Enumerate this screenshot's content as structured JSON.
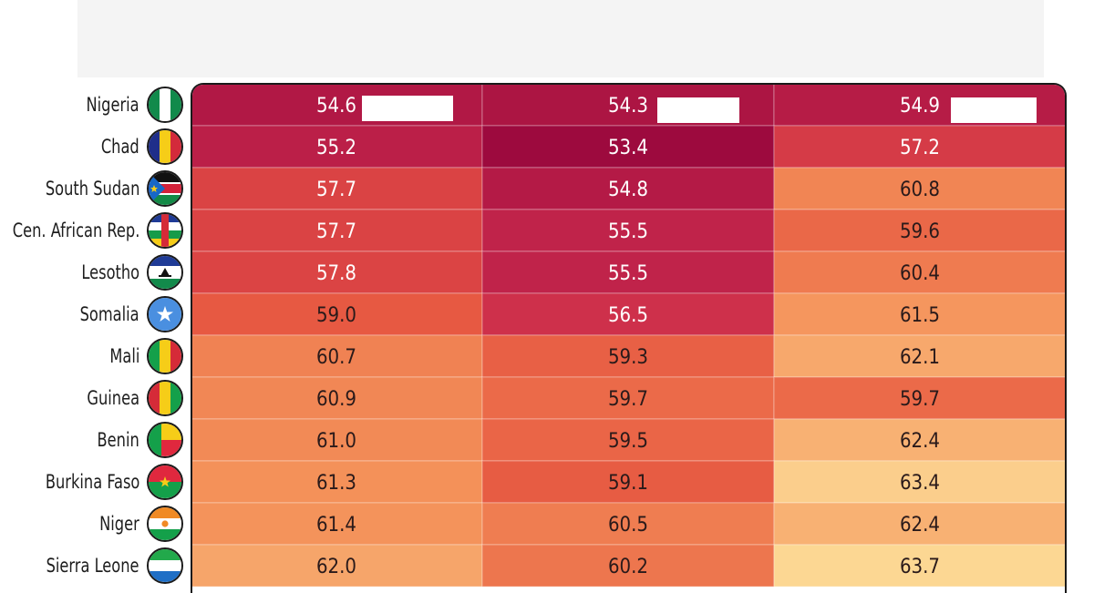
{
  "chart_data": {
    "type": "heatmap",
    "rows": [
      "Nigeria",
      "Chad",
      "South Sudan",
      "Cen. African Rep.",
      "Lesotho",
      "Somalia",
      "Mali",
      "Guinea",
      "Benin",
      "Burkina Faso",
      "Niger",
      "Sierra Leone"
    ],
    "columns": [
      "",
      "",
      ""
    ],
    "values": [
      [
        54.6,
        54.3,
        54.9
      ],
      [
        55.2,
        53.4,
        57.2
      ],
      [
        57.7,
        54.8,
        60.8
      ],
      [
        57.7,
        55.5,
        59.6
      ],
      [
        57.8,
        55.5,
        60.4
      ],
      [
        59.0,
        56.5,
        61.5
      ],
      [
        60.7,
        59.3,
        62.1
      ],
      [
        60.9,
        59.7,
        59.7
      ],
      [
        61.0,
        59.5,
        62.4
      ],
      [
        61.3,
        59.1,
        63.4
      ],
      [
        61.4,
        60.5,
        62.4
      ],
      [
        62.0,
        60.2,
        63.7
      ]
    ],
    "color_scale": [
      "#9d0a3e",
      "#c9294d",
      "#e5523f",
      "#f4925a",
      "#fde09a"
    ],
    "value_range": [
      53.4,
      64.0
    ]
  },
  "flags": [
    {
      "country": "Nigeria",
      "icon": "nigeria-flag-icon"
    },
    {
      "country": "Chad",
      "icon": "chad-flag-icon"
    },
    {
      "country": "South Sudan",
      "icon": "south-sudan-flag-icon"
    },
    {
      "country": "Cen. African Rep.",
      "icon": "central-african-republic-flag-icon"
    },
    {
      "country": "Lesotho",
      "icon": "lesotho-flag-icon"
    },
    {
      "country": "Somalia",
      "icon": "somalia-flag-icon"
    },
    {
      "country": "Mali",
      "icon": "mali-flag-icon"
    },
    {
      "country": "Guinea",
      "icon": "guinea-flag-icon"
    },
    {
      "country": "Benin",
      "icon": "benin-flag-icon"
    },
    {
      "country": "Burkina Faso",
      "icon": "burkina-faso-flag-icon"
    },
    {
      "country": "Niger",
      "icon": "niger-flag-icon"
    },
    {
      "country": "Sierra Leone",
      "icon": "sierra-leone-flag-icon"
    }
  ],
  "colors": {
    "frame": "#1a1a1a",
    "text_light": "#ffffff",
    "text_dark": "#2a1a1a",
    "top_panel": "#f4f4f4"
  }
}
